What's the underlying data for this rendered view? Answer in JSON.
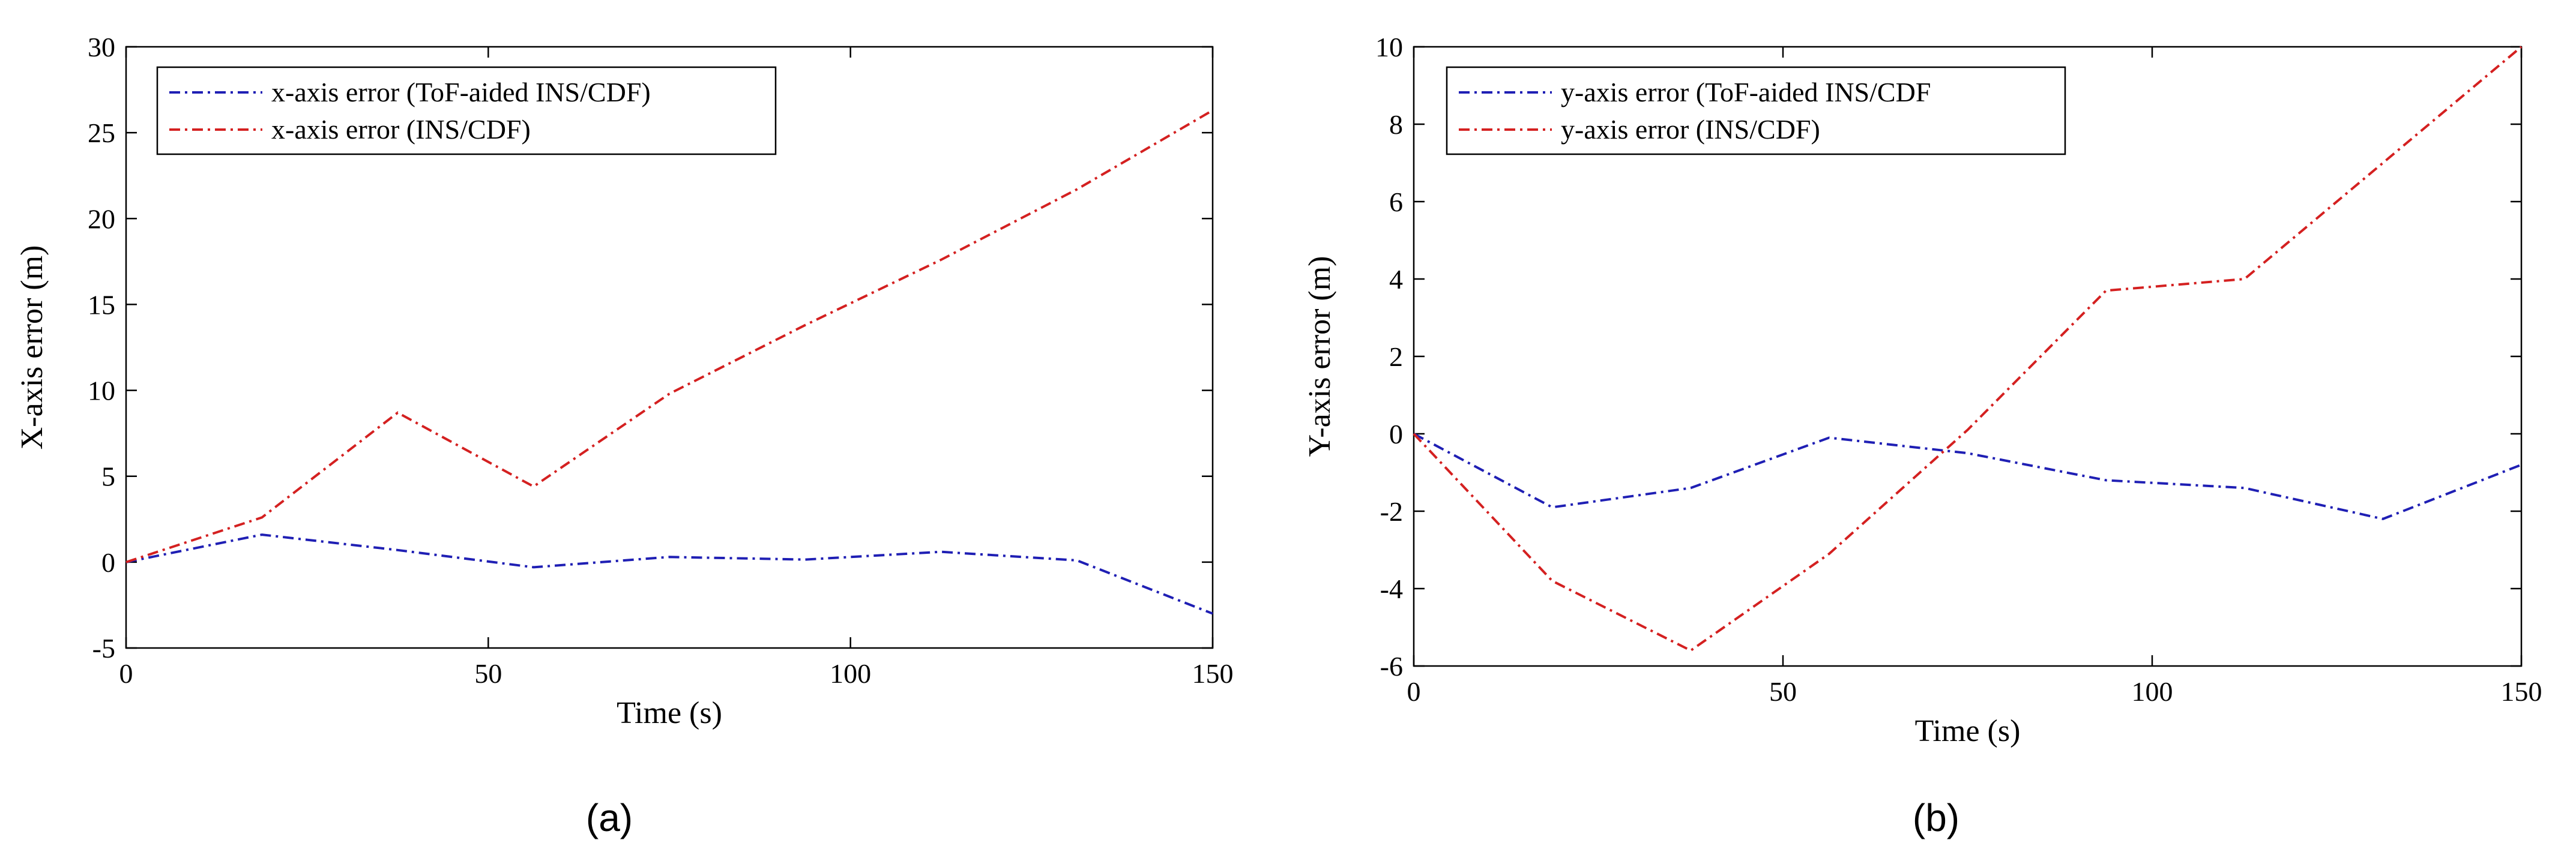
{
  "chart_data": [
    {
      "type": "line",
      "caption": "(a)",
      "xlabel": "Time (s)",
      "ylabel": "X-axis error (m)",
      "xlim": [
        0,
        150
      ],
      "ylim": [
        -5,
        30
      ],
      "xticks": [
        0,
        50,
        100,
        150
      ],
      "yticks": [
        -5,
        0,
        5,
        10,
        15,
        20,
        25,
        30
      ],
      "legend_position": "top-left",
      "series": [
        {
          "name": "x-axis error (ToF-aided INS/CDF)",
          "color": "#1f1fb4",
          "x": [
            0,
            18.75,
            37.5,
            56.25,
            75,
            93.75,
            112.5,
            131.25,
            150
          ],
          "y": [
            0,
            1.6,
            0.7,
            -0.3,
            0.3,
            0.15,
            0.6,
            0.1,
            -3.0
          ]
        },
        {
          "name": "x-axis error (INS/CDF)",
          "color": "#d42020",
          "x": [
            0,
            18.75,
            37.5,
            56.25,
            75,
            93.75,
            112.5,
            131.25,
            150
          ],
          "y": [
            0,
            2.6,
            8.7,
            4.4,
            9.8,
            13.8,
            17.6,
            21.7,
            26.3
          ]
        }
      ]
    },
    {
      "type": "line",
      "caption": "(b)",
      "xlabel": "Time (s)",
      "ylabel": "Y-axis error (m)",
      "xlim": [
        0,
        150
      ],
      "ylim": [
        -6,
        10
      ],
      "xticks": [
        0,
        50,
        100,
        150
      ],
      "yticks": [
        -6,
        -4,
        -2,
        0,
        2,
        4,
        6,
        8,
        10
      ],
      "legend_position": "top-left",
      "series": [
        {
          "name": "y-axis error (ToF-aided INS/CDF",
          "color": "#1f1fb4",
          "x": [
            0,
            18.75,
            37.5,
            56.25,
            75,
            93.75,
            112.5,
            131.25,
            150
          ],
          "y": [
            0,
            -1.9,
            -1.4,
            -0.1,
            -0.5,
            -1.2,
            -1.4,
            -2.2,
            -0.8
          ]
        },
        {
          "name": "y-axis error (INS/CDF)",
          "color": "#d42020",
          "x": [
            0,
            18.75,
            37.5,
            56.25,
            75,
            93.75,
            112.5,
            131.25,
            150
          ],
          "y": [
            0,
            -3.8,
            -5.6,
            -3.1,
            0.1,
            3.7,
            4.0,
            7.0,
            10.0
          ]
        }
      ]
    }
  ]
}
